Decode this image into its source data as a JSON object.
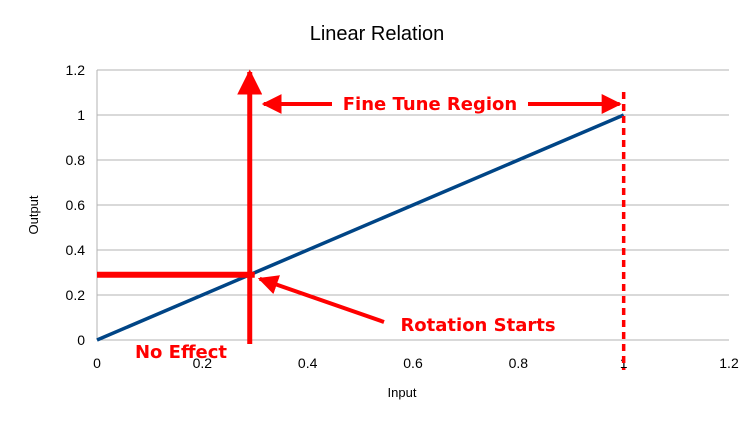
{
  "chart_data": {
    "type": "line",
    "title": "Linear Relation",
    "xlabel": "Input",
    "ylabel": "Output",
    "xlim": [
      0,
      1.2
    ],
    "ylim": [
      0,
      1.2
    ],
    "xticks": [
      0,
      0.2,
      0.4,
      0.6,
      0.8,
      1,
      1.2
    ],
    "yticks": [
      0,
      0.2,
      0.4,
      0.6,
      0.8,
      1,
      1.2
    ],
    "grid": "horizontal",
    "series": [
      {
        "x": [
          0,
          1
        ],
        "y": [
          0,
          1
        ],
        "color": "#004586"
      }
    ],
    "annotation_color": "#ff0000",
    "annotations": {
      "fine_tune": "Fine Tune Region",
      "rotation": "Rotation Starts",
      "no_effect": "No Effect"
    },
    "annotation_points": {
      "rotation_start": {
        "x": 0.29,
        "y": 0.29
      },
      "fine_tune_end": {
        "x": 1,
        "y": 1
      }
    }
  }
}
